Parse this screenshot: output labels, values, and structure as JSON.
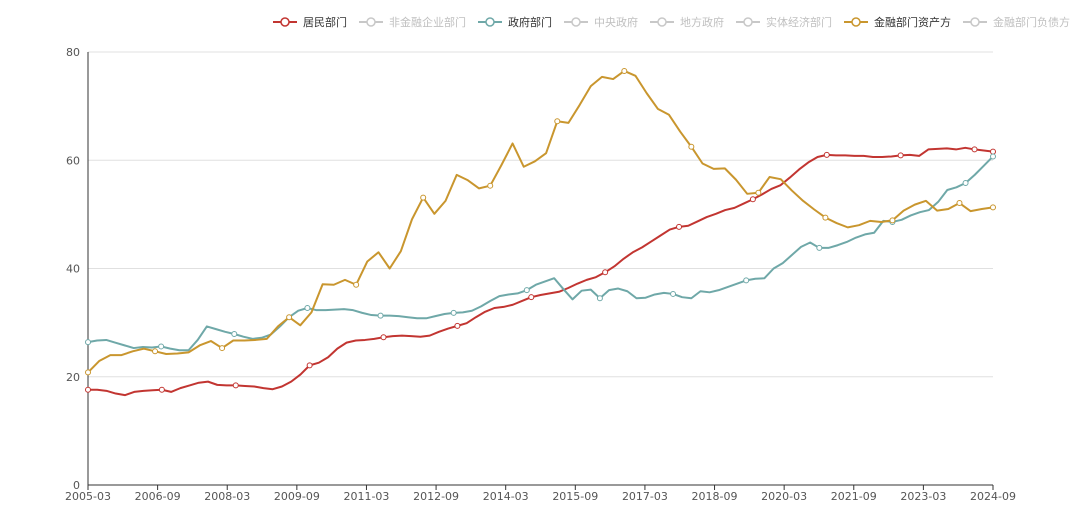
{
  "chart_data": {
    "type": "line",
    "title": "",
    "xlabel": "",
    "ylabel": "",
    "ylim": [
      0,
      80
    ],
    "y_ticks": [
      0,
      20,
      40,
      60,
      80
    ],
    "x_ticks": [
      "2005-03",
      "2006-09",
      "2008-03",
      "2009-09",
      "2011-03",
      "2012-09",
      "2014-03",
      "2015-09",
      "2017-03",
      "2018-09",
      "2020-03",
      "2021-09",
      "2023-03",
      "2024-09"
    ],
    "x_start": "2005-03",
    "x_step_quarters": 1,
    "grid": "horizontal",
    "legend": {
      "position": "top-right",
      "items": [
        {
          "name": "居民部门",
          "color": "#c23531",
          "active": true
        },
        {
          "name": "非金融企业部门",
          "color": "#c8c8c8",
          "active": false
        },
        {
          "name": "政府部门",
          "color": "#6fa8a8",
          "active": true
        },
        {
          "name": "中央政府",
          "color": "#c8c8c8",
          "active": false
        },
        {
          "name": "地方政府",
          "color": "#c8c8c8",
          "active": false
        },
        {
          "name": "实体经济部门",
          "color": "#c8c8c8",
          "active": false
        },
        {
          "name": "金融部门资产方",
          "color": "#c9962e",
          "active": true
        },
        {
          "name": "金融部门负债方",
          "color": "#c8c8c8",
          "active": false
        }
      ]
    },
    "series": [
      {
        "name": "居民部门",
        "color": "#c23531",
        "values": [
          17.6,
          17.6,
          17.4,
          16.9,
          16.6,
          17.2,
          17.4,
          17.5,
          17.6,
          17.2,
          17.9,
          18.4,
          18.9,
          19.1,
          18.5,
          18.4,
          18.4,
          18.3,
          18.2,
          17.9,
          17.7,
          18.2,
          19.1,
          20.4,
          22.1,
          22.6,
          23.6,
          25.2,
          26.3,
          26.7,
          26.8,
          27.0,
          27.3,
          27.5,
          27.6,
          27.5,
          27.4,
          27.6,
          28.3,
          28.9,
          29.4,
          29.9,
          31.0,
          32.0,
          32.7,
          32.9,
          33.3,
          34.0,
          34.7,
          35.1,
          35.4,
          35.7,
          36.4,
          37.2,
          37.9,
          38.4,
          39.3,
          40.4,
          41.8,
          43.0,
          43.9,
          45.0,
          46.1,
          47.2,
          47.7,
          47.9,
          48.7,
          49.5,
          50.1,
          50.8,
          51.2,
          52.0,
          52.8,
          53.7,
          54.7,
          55.4,
          56.8,
          58.3,
          59.6,
          60.6,
          61.0,
          60.9,
          60.9,
          60.8,
          60.8,
          60.6,
          60.6,
          60.7,
          60.9,
          61.0,
          60.8,
          62.0,
          62.1,
          62.2,
          62.0,
          62.3,
          62.0,
          61.8,
          61.6
        ]
      },
      {
        "name": "政府部门",
        "color": "#6fa8a8",
        "values": [
          26.4,
          26.7,
          26.8,
          26.3,
          25.8,
          25.3,
          25.5,
          25.4,
          25.6,
          25.2,
          24.9,
          24.9,
          26.8,
          29.3,
          28.8,
          28.3,
          27.9,
          27.4,
          27.0,
          27.2,
          27.8,
          29.3,
          31.0,
          32.2,
          32.7,
          32.3,
          32.3,
          32.4,
          32.5,
          32.3,
          31.8,
          31.4,
          31.3,
          31.3,
          31.2,
          31.0,
          30.8,
          30.8,
          31.2,
          31.6,
          31.8,
          31.9,
          32.2,
          33.0,
          34.0,
          34.9,
          35.2,
          35.4,
          36.0,
          37.0,
          37.6,
          38.2,
          36.2,
          34.3,
          35.9,
          36.1,
          34.5,
          36.0,
          36.3,
          35.8,
          34.5,
          34.6,
          35.2,
          35.5,
          35.3,
          34.7,
          34.5,
          35.8,
          35.6,
          36.0,
          36.6,
          37.2,
          37.8,
          38.1,
          38.2,
          40.0,
          41.0,
          42.5,
          44.0,
          44.8,
          43.8,
          43.8,
          44.3,
          44.9,
          45.7,
          46.3,
          46.6,
          48.8,
          48.6,
          49.0,
          49.8,
          50.4,
          50.8,
          52.3,
          54.5,
          55.0,
          55.8,
          57.3,
          59.0,
          60.7
        ]
      },
      {
        "name": "金融部门资产方",
        "color": "#c9962e",
        "values": [
          20.8,
          22.9,
          24.0,
          24.0,
          24.7,
          25.2,
          24.7,
          24.2,
          24.3,
          24.5,
          25.8,
          26.6,
          25.3,
          26.7,
          26.7,
          26.8,
          27.0,
          29.3,
          31.0,
          29.5,
          31.9,
          37.1,
          37.0,
          37.9,
          37.0,
          41.3,
          43.0,
          40.0,
          43.2,
          49.1,
          53.1,
          50.1,
          52.5,
          57.3,
          56.3,
          54.8,
          55.3,
          59.1,
          63.1,
          58.8,
          59.8,
          61.3,
          67.2,
          66.9,
          70.2,
          73.7,
          75.4,
          75.0,
          76.5,
          75.6,
          72.4,
          69.5,
          68.4,
          65.3,
          62.5,
          59.4,
          58.4,
          58.5,
          56.4,
          53.8,
          54.0,
          56.9,
          56.5,
          54.4,
          52.5,
          50.9,
          49.4,
          48.4,
          47.6,
          48.0,
          48.8,
          48.6,
          48.9,
          50.7,
          51.8,
          52.5,
          50.7,
          51.0,
          52.1,
          50.6,
          51.0,
          51.3
        ]
      }
    ]
  }
}
